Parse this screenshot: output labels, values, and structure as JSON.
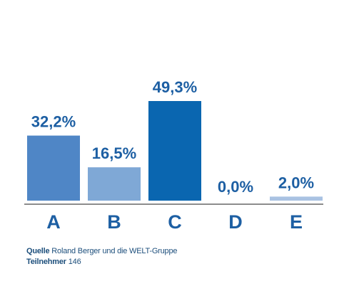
{
  "chart_data": {
    "type": "bar",
    "categories": [
      "A",
      "B",
      "C",
      "D",
      "E"
    ],
    "values": [
      32.2,
      16.5,
      49.3,
      0.0,
      2.0
    ],
    "value_labels": [
      "32,2%",
      "16,5%",
      "49,3%",
      "0,0%",
      "2,0%"
    ],
    "colors": [
      "#4f86c6",
      "#7fa8d6",
      "#0a66b0",
      "#c8d6ea",
      "#a9c2e2"
    ],
    "ylim": [
      0,
      49.3
    ],
    "grid": false,
    "label_color": "#1d5fa3"
  },
  "footer": {
    "source_label": "Quelle",
    "source_text": "Roland Berger und die WELT-Gruppe",
    "participants_label": "Teilnehmer",
    "participants_value": "146"
  }
}
